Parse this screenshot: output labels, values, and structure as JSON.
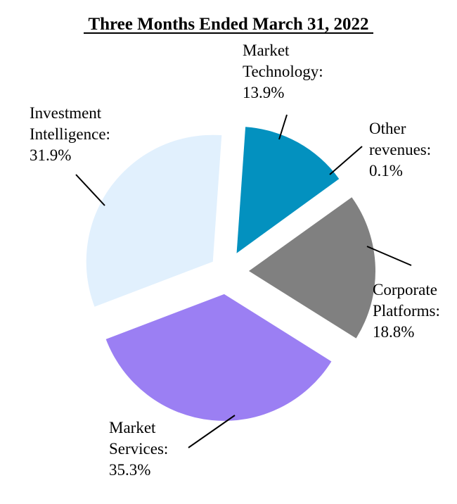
{
  "chart_data": {
    "type": "pie",
    "title": "Three Months Ended March 31, 2022",
    "slices": [
      {
        "name": "Market Technology",
        "label_lines": [
          "Market",
          "Technology:"
        ],
        "value_label": "13.9%",
        "value": 13.9,
        "color": "#0391bf"
      },
      {
        "name": "Other revenues",
        "label_lines": [
          "Other",
          "revenues:"
        ],
        "value_label": "0.1%",
        "value": 0.1,
        "color": "#ffffff"
      },
      {
        "name": "Corporate Platforms",
        "label_lines": [
          "Corporate",
          "Platforms:"
        ],
        "value_label": "18.8%",
        "value": 18.8,
        "color": "#808080"
      },
      {
        "name": "Market Services",
        "label_lines": [
          "Market",
          "Services:"
        ],
        "value_label": "35.3%",
        "value": 35.3,
        "color": "#9b7ff3"
      },
      {
        "name": "Investment Intelligence",
        "label_lines": [
          "Investment",
          "Intelligence:"
        ],
        "value_label": "31.9%",
        "value": 31.9,
        "color": "#e1f0fd"
      }
    ],
    "legend": "none"
  }
}
